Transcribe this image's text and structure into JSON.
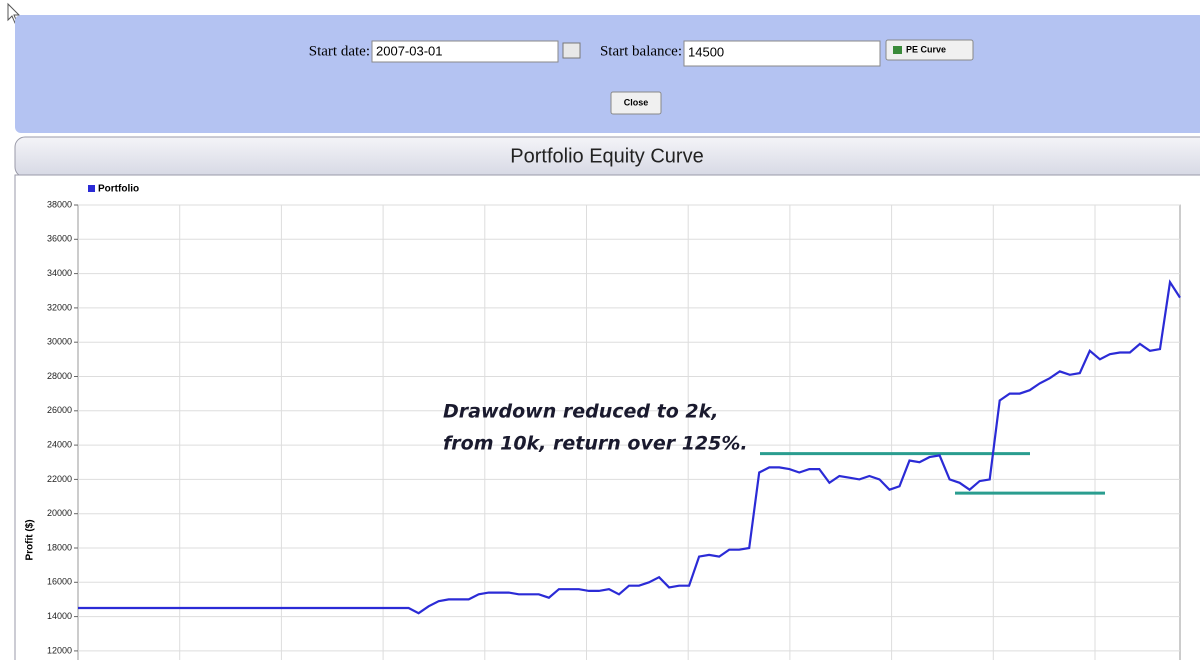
{
  "form": {
    "start_date_label": "Start date:",
    "start_date": "2007-03-01",
    "start_balance_label": "Start balance:",
    "start_balance": "14500",
    "pe_curve_button": "PE Curve",
    "close_button": "Close"
  },
  "chart_data": {
    "type": "line",
    "title": "Portfolio Equity Curve",
    "ylabel": "Profit ($)",
    "annotation": [
      "Drawdown reduced to 2k,",
      "from 10k, return over 125%."
    ],
    "legend": "top-left",
    "grid": true,
    "ylim": [
      11500,
      38000
    ],
    "yticks": [
      12000,
      14000,
      16000,
      18000,
      20000,
      22000,
      24000,
      26000,
      28000,
      30000,
      32000,
      34000,
      36000,
      38000
    ],
    "reference_lines": [
      {
        "value": 23500,
        "color": "#2a9d8f"
      },
      {
        "value": 21200,
        "color": "#2a9d8f"
      }
    ],
    "series": [
      {
        "name": "Portfolio",
        "color": "#2b2bd6",
        "values": [
          14500,
          14500,
          14500,
          14500,
          14500,
          14500,
          14500,
          14500,
          14500,
          14500,
          14500,
          14500,
          14500,
          14500,
          14500,
          14500,
          14500,
          14500,
          14500,
          14500,
          14500,
          14500,
          14500,
          14500,
          14500,
          14500,
          14500,
          14500,
          14500,
          14500,
          14500,
          14500,
          14500,
          14500,
          14200,
          14600,
          14900,
          15000,
          15000,
          15000,
          15300,
          15400,
          15400,
          15400,
          15300,
          15300,
          15300,
          15100,
          15600,
          15600,
          15600,
          15500,
          15500,
          15600,
          15300,
          15800,
          15800,
          16000,
          16300,
          15700,
          15800,
          15800,
          17500,
          17600,
          17500,
          17900,
          17900,
          18000,
          22400,
          22700,
          22700,
          22600,
          22400,
          22600,
          22600,
          21800,
          22200,
          22100,
          22000,
          22200,
          22000,
          21400,
          21600,
          23100,
          23000,
          23300,
          23400,
          22000,
          21800,
          21400,
          21900,
          22000,
          26600,
          27000,
          27000,
          27200,
          27600,
          27900,
          28300,
          28100,
          28200,
          29500,
          29000,
          29300,
          29400,
          29400,
          29900,
          29500,
          29600,
          33500,
          32600
        ]
      }
    ]
  }
}
